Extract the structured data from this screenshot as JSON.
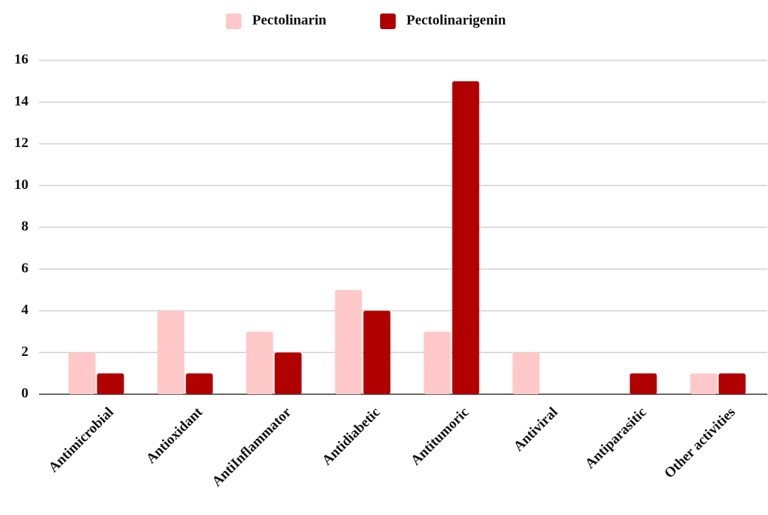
{
  "chart_data": {
    "type": "bar",
    "categories": [
      "Antimicrobial",
      "Antioxidant",
      "AntiInflammator",
      "Antidiabetic",
      "Antitumoric",
      "Antiviral",
      "Antiparasitic",
      "Other activities"
    ],
    "series": [
      {
        "name": "Pectolinarin",
        "color": "#ffc9c9",
        "values": [
          2,
          4,
          3,
          5,
          3,
          2,
          0,
          1
        ]
      },
      {
        "name": "Pectolinarigenin",
        "color": "#b00000",
        "values": [
          1,
          1,
          2,
          4,
          15,
          0,
          1,
          1
        ]
      }
    ],
    "ylim": [
      0,
      16
    ],
    "yticks": [
      0,
      2,
      4,
      6,
      8,
      10,
      12,
      14,
      16
    ],
    "grid": true,
    "legend": "top"
  }
}
